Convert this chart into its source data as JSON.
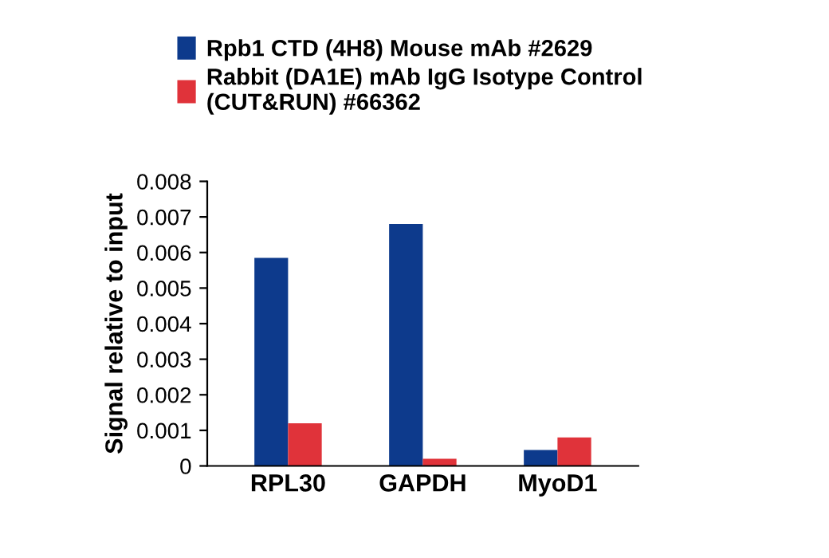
{
  "chart_data": {
    "type": "bar",
    "ylabel": "Signal relative to input",
    "categories": [
      "RPL30",
      "GAPDH",
      "MyoD1"
    ],
    "series": [
      {
        "name": "Rpb1 CTD (4H8) Mouse mAb #2629",
        "color": "#0d3a8c",
        "values": [
          0.00585,
          0.0068,
          0.00045
        ]
      },
      {
        "name": "Rabbit (DA1E) mAb IgG Isotype Control\n(CUT&RUN) #66362",
        "color": "#e0333a",
        "values": [
          0.0012,
          0.0002,
          0.0008
        ]
      }
    ],
    "ylim": [
      0,
      0.008
    ],
    "yticks": [
      0,
      0.001,
      0.002,
      0.003,
      0.004,
      0.005,
      0.006,
      0.007,
      0.008
    ],
    "grid": false,
    "legend": "top"
  }
}
